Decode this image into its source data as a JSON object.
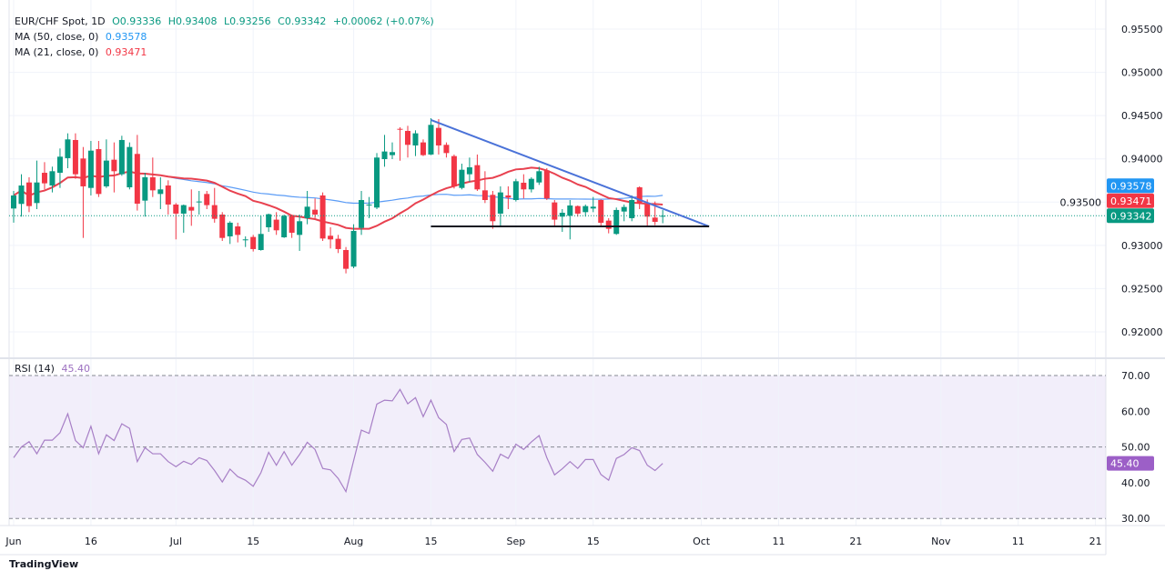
{
  "header": {
    "symbol": "EUR/CHF Spot, 1D",
    "open": "O0.93336",
    "high": "H0.93408",
    "low": "L0.93256",
    "close": "C0.93342",
    "change": "+0.00062 (+0.07%)",
    "ma50_label": "MA (50, close, 0)",
    "ma50_value": "0.93578",
    "ma21_label": "MA (21, close, 0)",
    "ma21_value": "0.93471",
    "rsi_label": "RSI (14)",
    "rsi_value": "45.40"
  },
  "logo_text": "TradingView",
  "colors": {
    "up": "#089981",
    "down": "#f23645",
    "ma50": "#5b9cf6",
    "ma21": "#e8414f",
    "trendline": "#4a72d8",
    "support": "#131722",
    "rsi": "#a77fc6",
    "rsi_band": "#f2eefa"
  },
  "chart_data": {
    "type": "candlestick",
    "price_axis": {
      "ticks": [
        "0.95500",
        "0.95000",
        "0.94500",
        "0.94000",
        "0.93500",
        "0.93000",
        "0.92500",
        "0.92000"
      ],
      "range": [
        0.9165,
        0.9583
      ]
    },
    "rsi_axis": {
      "ticks": [
        "70.00",
        "60.00",
        "50.00",
        "40.00",
        "30.00"
      ],
      "upper_band": 70,
      "middle": 50,
      "lower_band": 30
    },
    "x_ticks": [
      {
        "label": "Jun",
        "date": "Jun 2"
      },
      {
        "label": "16",
        "date": "Jun 16"
      },
      {
        "label": "Jul",
        "date": "Jul 1"
      },
      {
        "label": "15",
        "date": "Jul 15"
      },
      {
        "label": "Aug",
        "date": "Aug 1"
      },
      {
        "label": "15",
        "date": "Aug 15"
      },
      {
        "label": "Sep",
        "date": "Sep 1"
      },
      {
        "label": "15",
        "date": "Sep 15"
      },
      {
        "label": "Oct",
        "date": "Oct 1"
      },
      {
        "label": "11",
        "date": "Oct 11"
      },
      {
        "label": "21",
        "date": "Oct 21"
      },
      {
        "label": "Nov",
        "date": "Nov 1"
      },
      {
        "label": "11",
        "date": "Nov 11"
      },
      {
        "label": "21",
        "date": "Nov 21"
      }
    ],
    "last_price": 0.93342,
    "ma50_last": 0.93578,
    "ma21_last": 0.93471,
    "rsi_last": 45.4,
    "candles_columns": [
      "date",
      "open",
      "high",
      "low",
      "close"
    ],
    "candles": [
      [
        "Jun 2",
        0.93426,
        0.93629,
        0.93262,
        0.93577
      ],
      [
        "Jun 3",
        0.93479,
        0.93822,
        0.93332,
        0.93692
      ],
      [
        "Jun 4",
        0.93727,
        0.93787,
        0.93384,
        0.93454
      ],
      [
        "Jun 5",
        0.93489,
        0.9398,
        0.93419,
        0.93727
      ],
      [
        "Jun 6",
        0.93839,
        0.93962,
        0.93647,
        0.93717
      ],
      [
        "Jun 9",
        0.93692,
        0.9391,
        0.93612,
        0.93857
      ],
      [
        "Jun 10",
        0.93839,
        0.9412,
        0.93664,
        0.94025
      ],
      [
        "Jun 11",
        0.94008,
        0.94295,
        0.93892,
        0.94225
      ],
      [
        "Jun 12",
        0.94218,
        0.94295,
        0.93769,
        0.93822
      ],
      [
        "Jun 13",
        0.94004,
        0.94137,
        0.93086,
        0.93682
      ],
      [
        "Jun 16",
        0.93664,
        0.94207,
        0.93577,
        0.94095
      ],
      [
        "Jun 17",
        0.94113,
        0.94207,
        0.93559,
        0.93594
      ],
      [
        "Jun 18",
        0.93682,
        0.94225,
        0.93664,
        0.9398
      ],
      [
        "Jun 19",
        0.9399,
        0.9419,
        0.93612,
        0.93857
      ],
      [
        "Jun 20",
        0.93822,
        0.94267,
        0.93804,
        0.94218
      ],
      [
        "Jun 23",
        0.93671,
        0.9419,
        0.93647,
        0.94137
      ],
      [
        "Jun 24",
        0.94057,
        0.94277,
        0.93402,
        0.93482
      ],
      [
        "Jun 25",
        0.93517,
        0.93839,
        0.93332,
        0.93787
      ],
      [
        "Jun 26",
        0.93787,
        0.94015,
        0.93559,
        0.93636
      ],
      [
        "Jun 27",
        0.93594,
        0.93787,
        0.93419,
        0.93647
      ],
      [
        "Jun 30",
        0.93692,
        0.93752,
        0.93356,
        0.93472
      ],
      [
        "Jul 1",
        0.93472,
        0.93489,
        0.93069,
        0.93367
      ],
      [
        "Jul 2",
        0.93367,
        0.93472,
        0.93146,
        0.93465
      ],
      [
        "Jul 3",
        0.93444,
        0.93647,
        0.93226,
        0.93402
      ],
      [
        "Jul 4",
        0.935,
        0.93629,
        0.93356,
        0.93507
      ],
      [
        "Jul 7",
        0.93594,
        0.93629,
        0.93419,
        0.93465
      ],
      [
        "Jul 8",
        0.93465,
        0.93664,
        0.93262,
        0.93307
      ],
      [
        "Jul 9",
        0.93356,
        0.93384,
        0.93051,
        0.93086
      ],
      [
        "Jul 10",
        0.93104,
        0.93279,
        0.93016,
        0.93262
      ],
      [
        "Jul 11",
        0.93219,
        0.93262,
        0.93034,
        0.93121
      ],
      [
        "Jul 14",
        0.93062,
        0.93104,
        0.92981,
        0.93069
      ],
      [
        "Jul 15",
        0.93097,
        0.93121,
        0.92929,
        0.92957
      ],
      [
        "Jul 16",
        0.92946,
        0.93342,
        0.92939,
        0.93132
      ],
      [
        "Jul 17",
        0.93209,
        0.93367,
        0.93156,
        0.9336
      ],
      [
        "Jul 18",
        0.93297,
        0.93384,
        0.93121,
        0.93174
      ],
      [
        "Jul 21",
        0.93093,
        0.93356,
        0.93086,
        0.93342
      ],
      [
        "Jul 22",
        0.93342,
        0.93356,
        0.93086,
        0.93146
      ],
      [
        "Jul 23",
        0.93121,
        0.93356,
        0.92936,
        0.93279
      ],
      [
        "Jul 24",
        0.93314,
        0.93629,
        0.93244,
        0.93447
      ],
      [
        "Jul 25",
        0.93412,
        0.93542,
        0.93314,
        0.93356
      ],
      [
        "Jul 28",
        0.93577,
        0.93612,
        0.93051,
        0.93079
      ],
      [
        "Jul 29",
        0.93111,
        0.93209,
        0.92964,
        0.93069
      ],
      [
        "Jul 30",
        0.93076,
        0.93121,
        0.92911,
        0.92957
      ],
      [
        "Jul 31",
        0.92946,
        0.92981,
        0.92676,
        0.92729
      ],
      [
        "Aug 1",
        0.92754,
        0.93244,
        0.92736,
        0.93167
      ],
      [
        "Aug 4",
        0.93202,
        0.93629,
        0.93121,
        0.93524
      ],
      [
        "Aug 5",
        0.93461,
        0.93559,
        0.93314,
        0.93472
      ],
      [
        "Aug 6",
        0.93437,
        0.94067,
        0.93419,
        0.94015
      ],
      [
        "Aug 7",
        0.93997,
        0.94277,
        0.93909,
        0.94085
      ],
      [
        "Aug 8",
        0.94043,
        0.9419,
        0.93997,
        0.94078
      ],
      [
        "Aug 11",
        0.94347,
        0.94365,
        0.93979,
        0.94337
      ],
      [
        "Aug 12",
        0.94323,
        0.94382,
        0.94015,
        0.94162
      ],
      [
        "Aug 13",
        0.94155,
        0.9433,
        0.94032,
        0.94295
      ],
      [
        "Aug 14",
        0.9419,
        0.94225,
        0.94032,
        0.94043
      ],
      [
        "Aug 15",
        0.9405,
        0.9447,
        0.94043,
        0.94393
      ],
      [
        "Aug 18",
        0.94358,
        0.9446,
        0.9405,
        0.94155
      ],
      [
        "Aug 19",
        0.94162,
        0.9419,
        0.94015,
        0.94067
      ],
      [
        "Aug 20",
        0.94032,
        0.9405,
        0.93657,
        0.93682
      ],
      [
        "Aug 21",
        0.93664,
        0.93944,
        0.93647,
        0.93874
      ],
      [
        "Aug 22",
        0.93822,
        0.94015,
        0.93734,
        0.93902
      ],
      [
        "Aug 25",
        0.93927,
        0.9405,
        0.93629,
        0.93647
      ],
      [
        "Aug 26",
        0.93636,
        0.93857,
        0.93489,
        0.93524
      ],
      [
        "Aug 27",
        0.93584,
        0.93629,
        0.93191,
        0.93279
      ],
      [
        "Aug 28",
        0.93367,
        0.93682,
        0.93226,
        0.93612
      ],
      [
        "Aug 29",
        0.93577,
        0.93682,
        0.93419,
        0.93552
      ],
      [
        "Sep 1",
        0.93524,
        0.93769,
        0.93507,
        0.93741
      ],
      [
        "Sep 2",
        0.93724,
        0.93822,
        0.93542,
        0.93647
      ],
      [
        "Sep 3",
        0.93647,
        0.93787,
        0.93612,
        0.93769
      ],
      [
        "Sep 4",
        0.93727,
        0.93909,
        0.93699,
        0.93857
      ],
      [
        "Sep 5",
        0.93867,
        0.93892,
        0.93524,
        0.93542
      ],
      [
        "Sep 8",
        0.93496,
        0.93524,
        0.93209,
        0.93297
      ],
      [
        "Sep 9",
        0.93332,
        0.93419,
        0.93156,
        0.93377
      ],
      [
        "Sep 10",
        0.93342,
        0.93524,
        0.93069,
        0.93461
      ],
      [
        "Sep 11",
        0.93454,
        0.93461,
        0.93332,
        0.93367
      ],
      [
        "Sep 12",
        0.93384,
        0.93472,
        0.93332,
        0.93454
      ],
      [
        "Sep 15",
        0.93426,
        0.93559,
        0.93384,
        0.93447
      ],
      [
        "Sep 16",
        0.93524,
        0.93531,
        0.93226,
        0.93261
      ],
      [
        "Sep 17",
        0.93286,
        0.93314,
        0.93139,
        0.93191
      ],
      [
        "Sep 18",
        0.93132,
        0.93437,
        0.93121,
        0.93409
      ],
      [
        "Sep 19",
        0.93391,
        0.93472,
        0.93279,
        0.93444
      ],
      [
        "Sep 22",
        0.93314,
        0.93577,
        0.93279,
        0.93524
      ],
      [
        "Sep 23",
        0.93671,
        0.93682,
        0.93419,
        0.93489
      ],
      [
        "Sep 24",
        0.93472,
        0.93531,
        0.93226,
        0.93332
      ],
      [
        "Sep 25",
        0.93321,
        0.93507,
        0.93233,
        0.93272
      ],
      [
        "Sep 26",
        0.93336,
        0.93408,
        0.93256,
        0.93342
      ]
    ],
    "rsi": [
      47.0,
      50.0,
      51.5,
      48.1,
      51.9,
      51.9,
      54.0,
      59.3,
      51.8,
      49.8,
      55.8,
      48.1,
      53.4,
      51.8,
      56.5,
      55.2,
      45.9,
      49.8,
      48.1,
      48.1,
      45.9,
      44.5,
      46.0,
      45.1,
      47.0,
      46.2,
      43.4,
      40.2,
      43.8,
      41.7,
      40.7,
      39.0,
      42.8,
      48.5,
      44.9,
      48.7,
      44.9,
      47.9,
      51.3,
      49.3,
      44.0,
      43.6,
      41.2,
      37.5,
      46.2,
      54.7,
      53.8,
      62.0,
      63.1,
      62.9,
      66.1,
      62.1,
      63.8,
      58.5,
      63.1,
      58.2,
      56.3,
      48.7,
      52.1,
      52.5,
      47.9,
      45.7,
      43.2,
      48.0,
      46.8,
      50.8,
      49.3,
      51.4,
      53.2,
      47.0,
      42.2,
      43.9,
      45.9,
      44.0,
      46.5,
      46.5,
      42.3,
      40.7,
      46.8,
      47.9,
      49.8,
      49.0,
      44.9,
      43.4,
      45.4
    ],
    "ma_periods": {
      "ma50": 50,
      "ma21": 21
    },
    "trendlines": [
      {
        "kind": "descending-resistance",
        "from": {
          "date": "Aug 15",
          "price": 0.94449
        },
        "to": {
          "date": "Oct 2",
          "price": 0.93219
        }
      },
      {
        "kind": "horizontal-support",
        "from": {
          "date": "Aug 15",
          "price": 0.93219
        },
        "to": {
          "date": "Oct 2",
          "price": 0.93219
        }
      }
    ]
  }
}
